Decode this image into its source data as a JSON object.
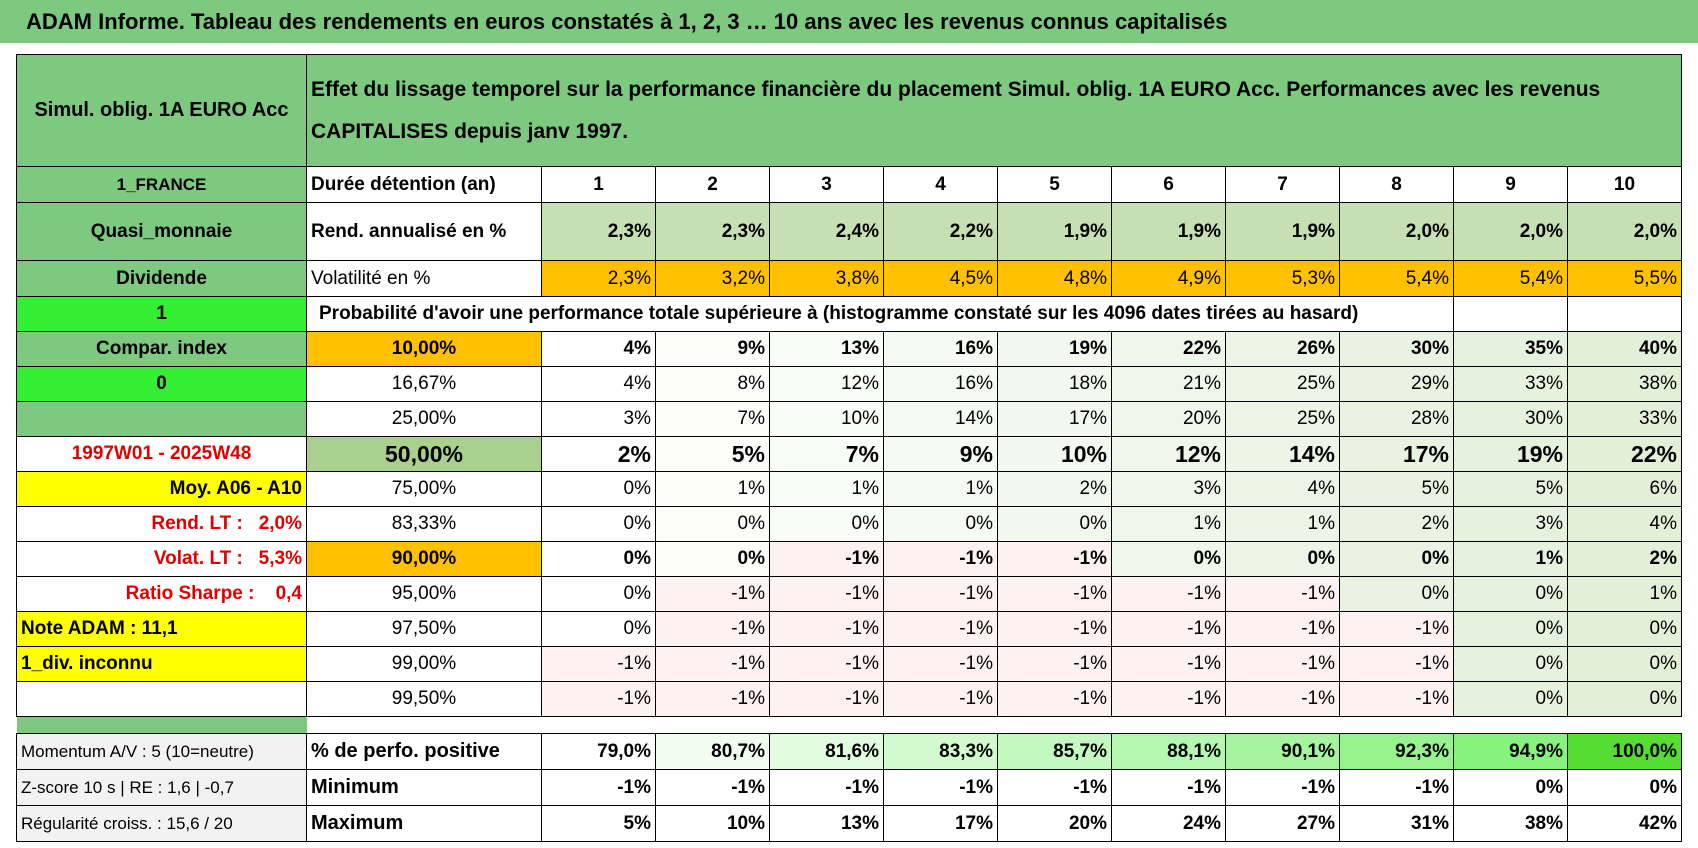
{
  "title": "ADAM Informe. Tableau des rendements en euros constatés à 1, 2, 3 … 10 ans avec les revenus connus capitalisés",
  "header": {
    "left": "Simul. oblig. 1A EURO Acc",
    "description": "Effet du lissage temporel sur la performance financière du placement Simul. oblig. 1A EURO Acc. Performances avec les revenus CAPITALISES depuis janv 1997."
  },
  "rows": [
    {
      "label": "1_FRANCE",
      "name": "Durée détention (an)",
      "cells": [
        "1",
        "2",
        "3",
        "4",
        "5",
        "6",
        "7",
        "8",
        "9",
        "10"
      ]
    },
    {
      "label": "Quasi_monnaie",
      "name": "Rend. annualisé en %",
      "cells": [
        "2,3%",
        "2,3%",
        "2,4%",
        "2,2%",
        "1,9%",
        "1,9%",
        "1,9%",
        "2,0%",
        "2,0%",
        "2,0%"
      ]
    },
    {
      "label": "Dividende",
      "name": "Volatilité en %",
      "cells": [
        "2,3%",
        "3,2%",
        "3,8%",
        "4,5%",
        "4,8%",
        "4,9%",
        "5,3%",
        "5,4%",
        "5,4%",
        "5,5%"
      ]
    },
    {
      "label": "1",
      "name": "Probabilité d'avoir une performance totale supérieure à (histogramme constaté sur les 4096 dates tirées au hasard)",
      "cells": []
    },
    {
      "label": "Compar. index",
      "name": "10,00%",
      "cells": [
        "4%",
        "9%",
        "13%",
        "16%",
        "19%",
        "22%",
        "26%",
        "30%",
        "35%",
        "40%"
      ]
    },
    {
      "label": "0",
      "name": "16,67%",
      "cells": [
        "4%",
        "8%",
        "12%",
        "16%",
        "18%",
        "21%",
        "25%",
        "29%",
        "33%",
        "38%"
      ]
    },
    {
      "name": "25,00%",
      "cells": [
        "3%",
        "7%",
        "10%",
        "14%",
        "17%",
        "20%",
        "25%",
        "28%",
        "30%",
        "33%"
      ]
    },
    {
      "label": "1997W01 - 2025W48",
      "name": "50,00%",
      "cells": [
        "2%",
        "5%",
        "7%",
        "9%",
        "10%",
        "12%",
        "14%",
        "17%",
        "19%",
        "22%"
      ]
    },
    {
      "label": "Moy. A06 - A10",
      "name": "75,00%",
      "cells": [
        "0%",
        "1%",
        "1%",
        "1%",
        "2%",
        "3%",
        "4%",
        "5%",
        "5%",
        "6%"
      ]
    },
    {
      "label": "Rend. LT :   2,0%",
      "name": "83,33%",
      "cells": [
        "0%",
        "0%",
        "0%",
        "0%",
        "0%",
        "1%",
        "1%",
        "2%",
        "3%",
        "4%"
      ]
    },
    {
      "label": "Volat. LT :   5,3%",
      "name": "90,00%",
      "cells": [
        "0%",
        "0%",
        "-1%",
        "-1%",
        "-1%",
        "0%",
        "0%",
        "0%",
        "1%",
        "2%"
      ]
    },
    {
      "label": "Ratio Sharpe :    0,4",
      "name": "95,00%",
      "cells": [
        "0%",
        "-1%",
        "-1%",
        "-1%",
        "-1%",
        "-1%",
        "-1%",
        "0%",
        "0%",
        "1%"
      ]
    },
    {
      "label": "Note ADAM : 11,1",
      "name": "97,50%",
      "cells": [
        "0%",
        "-1%",
        "-1%",
        "-1%",
        "-1%",
        "-1%",
        "-1%",
        "-1%",
        "0%",
        "0%"
      ]
    },
    {
      "label": "1_div. inconnu",
      "name": "99,00%",
      "cells": [
        "-1%",
        "-1%",
        "-1%",
        "-1%",
        "-1%",
        "-1%",
        "-1%",
        "-1%",
        "0%",
        "0%"
      ]
    },
    {
      "name": "99,50%",
      "cells": [
        "-1%",
        "-1%",
        "-1%",
        "-1%",
        "-1%",
        "-1%",
        "-1%",
        "-1%",
        "0%",
        "0%"
      ]
    }
  ],
  "footer": [
    {
      "label": "Momentum A/V : 5 (10=neutre)",
      "name": "% de perfo. positive",
      "cells": [
        "79,0%",
        "80,7%",
        "81,6%",
        "83,3%",
        "85,7%",
        "88,1%",
        "90,1%",
        "92,3%",
        "94,9%",
        "100,0%"
      ]
    },
    {
      "label": "Z-score 10 s | RE : 1,6 | -0,7",
      "name": "Minimum",
      "cells": [
        "-1%",
        "-1%",
        "-1%",
        "-1%",
        "-1%",
        "-1%",
        "-1%",
        "-1%",
        "0%",
        "0%"
      ]
    },
    {
      "label": "Régularité croiss. : 15,6 / 20",
      "name": "Maximum",
      "cells": [
        "5%",
        "10%",
        "13%",
        "17%",
        "20%",
        "24%",
        "27%",
        "31%",
        "38%",
        "42%"
      ]
    }
  ]
}
